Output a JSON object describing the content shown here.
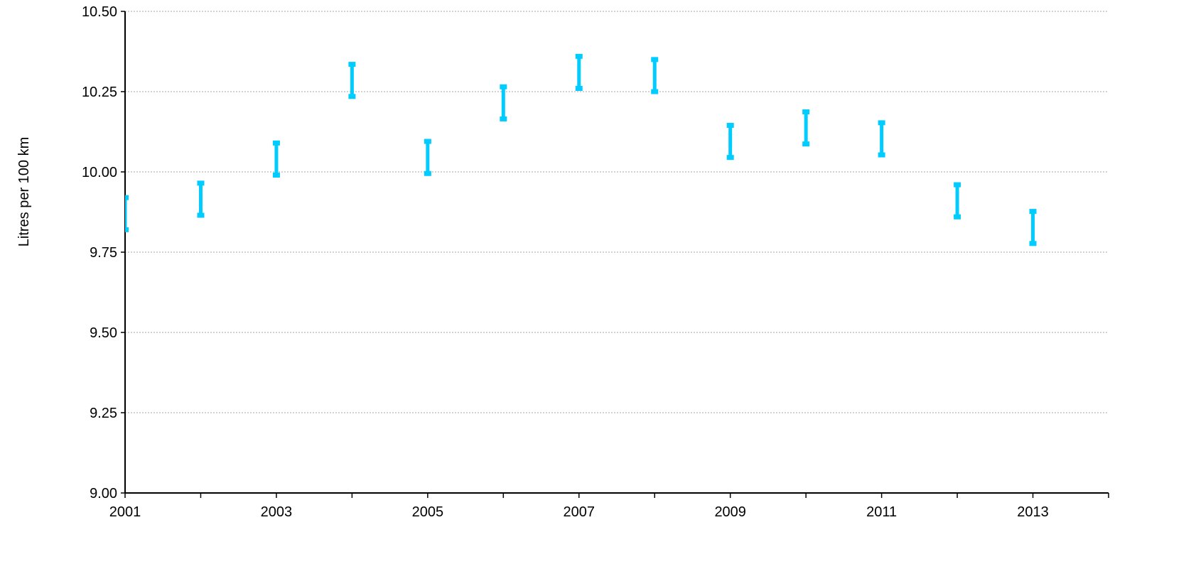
{
  "chart_data": {
    "type": "error-bar",
    "title": "",
    "xlabel": "",
    "ylabel": "Litres per 100 km",
    "xlim": [
      2001,
      2014
    ],
    "ylim": [
      9.0,
      10.5
    ],
    "y_ticks": [
      "9.00",
      "9.25",
      "9.50",
      "9.75",
      "10.00",
      "10.25",
      "10.50"
    ],
    "x_ticks": [
      "2001",
      "2003",
      "2005",
      "2007",
      "2009",
      "2011",
      "2013"
    ],
    "grid": "horizontal",
    "legend": "none",
    "series": [
      {
        "points": [
          {
            "x": 2001,
            "low": 9.82,
            "high": 9.92
          },
          {
            "x": 2002,
            "low": 9.865,
            "high": 9.965
          },
          {
            "x": 2003,
            "low": 9.99,
            "high": 10.09
          },
          {
            "x": 2004,
            "low": 10.235,
            "high": 10.335
          },
          {
            "x": 2005,
            "low": 9.995,
            "high": 10.095
          },
          {
            "x": 2006,
            "low": 10.165,
            "high": 10.265
          },
          {
            "x": 2007,
            "low": 10.26,
            "high": 10.36
          },
          {
            "x": 2008,
            "low": 10.25,
            "high": 10.35
          },
          {
            "x": 2009,
            "low": 10.045,
            "high": 10.145
          },
          {
            "x": 2010,
            "low": 10.087,
            "high": 10.187
          },
          {
            "x": 2011,
            "low": 10.053,
            "high": 10.153
          },
          {
            "x": 2012,
            "low": 9.86,
            "high": 9.96
          },
          {
            "x": 2013,
            "low": 9.777,
            "high": 9.877
          }
        ]
      }
    ]
  },
  "colors": {
    "series": "#00CCFF",
    "axis": "#000000",
    "grid": "#A6A6A6"
  }
}
